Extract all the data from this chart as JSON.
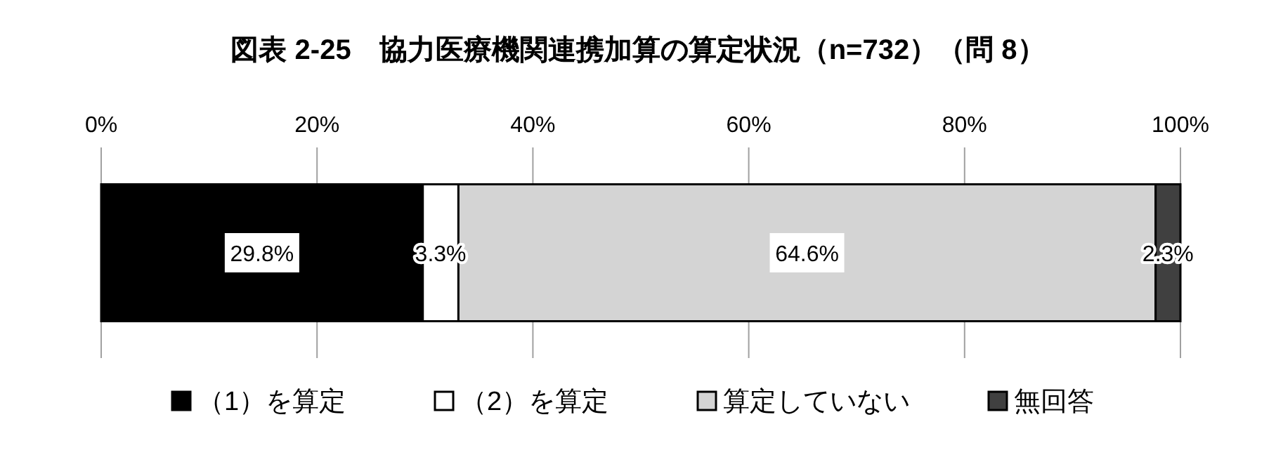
{
  "chart_data": {
    "type": "bar",
    "orientation": "horizontal",
    "stacked": true,
    "title": "図表 2-25　協力医療機関連携加算の算定状況（n=732）（問 8）",
    "categories": [
      null
    ],
    "series": [
      {
        "name": "（1）を算定",
        "color": "#000000",
        "values": [
          29.8
        ],
        "value_labels": [
          "29.8%"
        ]
      },
      {
        "name": "（2）を算定",
        "color": "#ffffff",
        "values": [
          3.3
        ],
        "value_labels": [
          "3.3%"
        ]
      },
      {
        "name": "算定していない",
        "color": "#d4d4d4",
        "values": [
          64.6
        ],
        "value_labels": [
          "64.6%"
        ]
      },
      {
        "name": "無回答",
        "color": "#404040",
        "values": [
          2.3
        ],
        "value_labels": [
          "2.3%"
        ]
      }
    ],
    "xlim": [
      0,
      100
    ],
    "xticks": [
      {
        "value": 0,
        "label": "0%"
      },
      {
        "value": 20,
        "label": "20%"
      },
      {
        "value": 40,
        "label": "40%"
      },
      {
        "value": 60,
        "label": "60%"
      },
      {
        "value": 80,
        "label": "80%"
      },
      {
        "value": 100,
        "label": "100%"
      }
    ],
    "grid": "x",
    "legend": "bottom"
  }
}
